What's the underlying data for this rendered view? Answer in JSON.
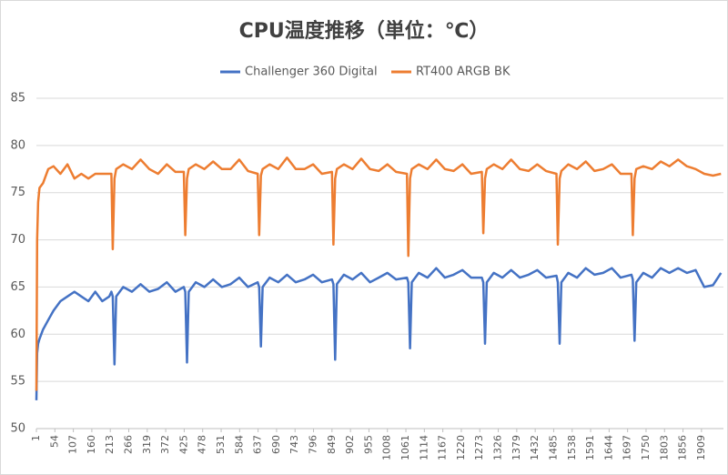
{
  "chart_data": {
    "type": "line",
    "title": "CPU温度推移（単位：℃）",
    "x": [
      1,
      3,
      6,
      10,
      20,
      35,
      50,
      70,
      90,
      110,
      130,
      150,
      170,
      190,
      210,
      216,
      220,
      225,
      230,
      250,
      275,
      300,
      325,
      350,
      375,
      400,
      424,
      428,
      433,
      438,
      458,
      483,
      508,
      533,
      558,
      583,
      608,
      636,
      640,
      645,
      650,
      670,
      695,
      720,
      745,
      770,
      795,
      820,
      849,
      853,
      858,
      863,
      883,
      908,
      933,
      958,
      983,
      1008,
      1033,
      1064,
      1068,
      1073,
      1078,
      1098,
      1123,
      1148,
      1173,
      1198,
      1223,
      1248,
      1279,
      1283,
      1288,
      1293,
      1313,
      1338,
      1363,
      1388,
      1413,
      1438,
      1463,
      1493,
      1497,
      1502,
      1507,
      1527,
      1552,
      1577,
      1602,
      1627,
      1652,
      1677,
      1708,
      1712,
      1717,
      1722,
      1742,
      1767,
      1792,
      1817,
      1842,
      1867,
      1892,
      1917,
      1942,
      1965
    ],
    "series": [
      {
        "name": "Challenger 360 Digital",
        "color": "#4472c4",
        "values": [
          53,
          58,
          59,
          59.5,
          60.5,
          61.5,
          62.5,
          63.5,
          64,
          64.5,
          64,
          63.5,
          64.5,
          63.5,
          64,
          64.5,
          64,
          56.8,
          64,
          65,
          64.5,
          65.3,
          64.5,
          64.8,
          65.5,
          64.5,
          65,
          64.5,
          57,
          64.5,
          65.5,
          65,
          65.8,
          65,
          65.3,
          66,
          65,
          65.5,
          65,
          58.7,
          65,
          66,
          65.5,
          66.3,
          65.5,
          65.8,
          66.3,
          65.5,
          65.8,
          65.3,
          57.3,
          65.3,
          66.3,
          65.8,
          66.5,
          65.5,
          66,
          66.5,
          65.8,
          66,
          65.5,
          58.5,
          65.5,
          66.5,
          66,
          67,
          66,
          66.3,
          66.8,
          66,
          66,
          65.5,
          59,
          65.5,
          66.5,
          66,
          66.8,
          66,
          66.3,
          66.8,
          66,
          66.2,
          65.5,
          59,
          65.5,
          66.5,
          66,
          67,
          66.3,
          66.5,
          67,
          66,
          66.3,
          65.8,
          59.3,
          65.5,
          66.5,
          66,
          67,
          66.5,
          67,
          66.5,
          66.8,
          65,
          65.2,
          66.5
        ]
      },
      {
        "name": "RT400 ARGB BK",
        "color": "#ed7d31",
        "values": [
          54,
          70,
          74,
          75.5,
          76,
          77.5,
          77.8,
          77,
          78,
          76.5,
          77,
          76.5,
          77,
          77,
          77,
          77,
          69,
          76.5,
          77.5,
          78,
          77.5,
          78.5,
          77.5,
          77,
          78,
          77.2,
          77.2,
          70.5,
          76.5,
          77.5,
          78,
          77.5,
          78.3,
          77.5,
          77.5,
          78.5,
          77.3,
          77,
          70.5,
          76.8,
          77.5,
          78,
          77.5,
          78.7,
          77.5,
          77.5,
          78,
          77,
          77.2,
          69.5,
          76.5,
          77.5,
          78,
          77.5,
          78.6,
          77.5,
          77.3,
          78,
          77.2,
          77,
          68.3,
          76.5,
          77.5,
          78,
          77.5,
          78.5,
          77.5,
          77.3,
          78,
          77,
          77.2,
          70.7,
          76.5,
          77.5,
          78,
          77.5,
          78.5,
          77.5,
          77.3,
          78,
          77.3,
          77,
          69.5,
          76.5,
          77.3,
          78,
          77.5,
          78.3,
          77.3,
          77.5,
          78,
          77,
          77,
          70.5,
          76.5,
          77.5,
          77.8,
          77.5,
          78.3,
          77.8,
          78.5,
          77.8,
          77.5,
          77,
          76.8,
          77
        ]
      }
    ],
    "xlim": [
      1,
      1972
    ],
    "xticks": [
      1,
      54,
      107,
      160,
      213,
      266,
      319,
      372,
      425,
      478,
      531,
      584,
      637,
      690,
      743,
      796,
      849,
      902,
      955,
      1008,
      1061,
      1114,
      1167,
      1220,
      1273,
      1326,
      1379,
      1432,
      1485,
      1538,
      1591,
      1644,
      1697,
      1750,
      1803,
      1856,
      1909
    ],
    "ylim": [
      50,
      85
    ],
    "yticks": [
      50,
      55,
      60,
      65,
      70,
      75,
      80,
      85
    ],
    "grid": true,
    "legend": "top"
  }
}
